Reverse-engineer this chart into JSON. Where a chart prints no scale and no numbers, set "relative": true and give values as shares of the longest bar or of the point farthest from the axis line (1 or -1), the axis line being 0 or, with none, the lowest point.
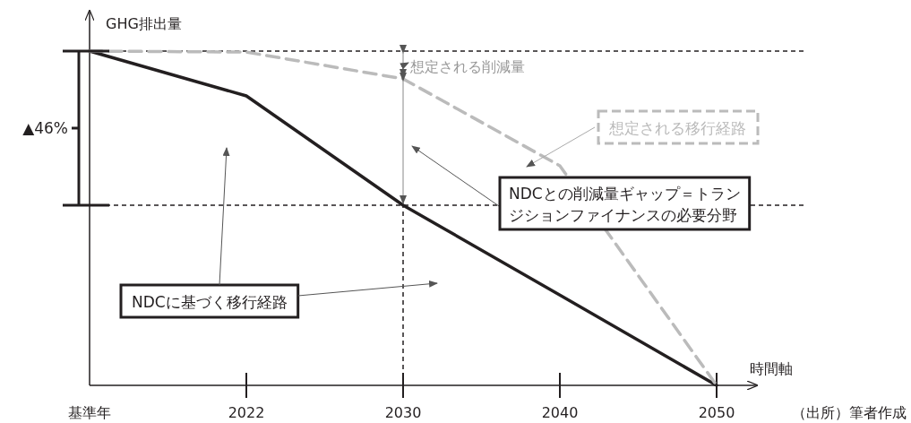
{
  "chart_data": {
    "type": "line",
    "relative": true,
    "ylabel": "GHG排出量",
    "xlabel": "時間軸",
    "categories": [
      "基準年",
      "2022",
      "2030",
      "2040",
      "2050"
    ],
    "series": [
      {
        "name": "NDCに基づく移行経路",
        "color": "#231f20",
        "values": [
          1,
          0.866,
          0.539,
          0.27,
          0
        ],
        "line_style": "solid"
      },
      {
        "name": "想定される移行経路",
        "color": "#bbbbbb",
        "values": [
          1,
          0.997,
          0.917,
          0.657,
          0
        ],
        "line_style": "dashed"
      }
    ],
    "ref_lines": [
      {
        "axis": "y",
        "value": 1,
        "line_style": "dashed",
        "color": "#231f20"
      },
      {
        "axis": "y",
        "value": 0.539,
        "line_style": "dashed",
        "color": "#231f20"
      },
      {
        "axis": "x",
        "value": "2030",
        "line_style": "dashed",
        "color": "#231f20"
      }
    ],
    "annotations": [
      "▲46%",
      "想定される削減量",
      "NDCとの削減量ギャップ＝トランジションファイナンスの必要分野",
      "（出所）筆者作成"
    ],
    "legend": false
  }
}
